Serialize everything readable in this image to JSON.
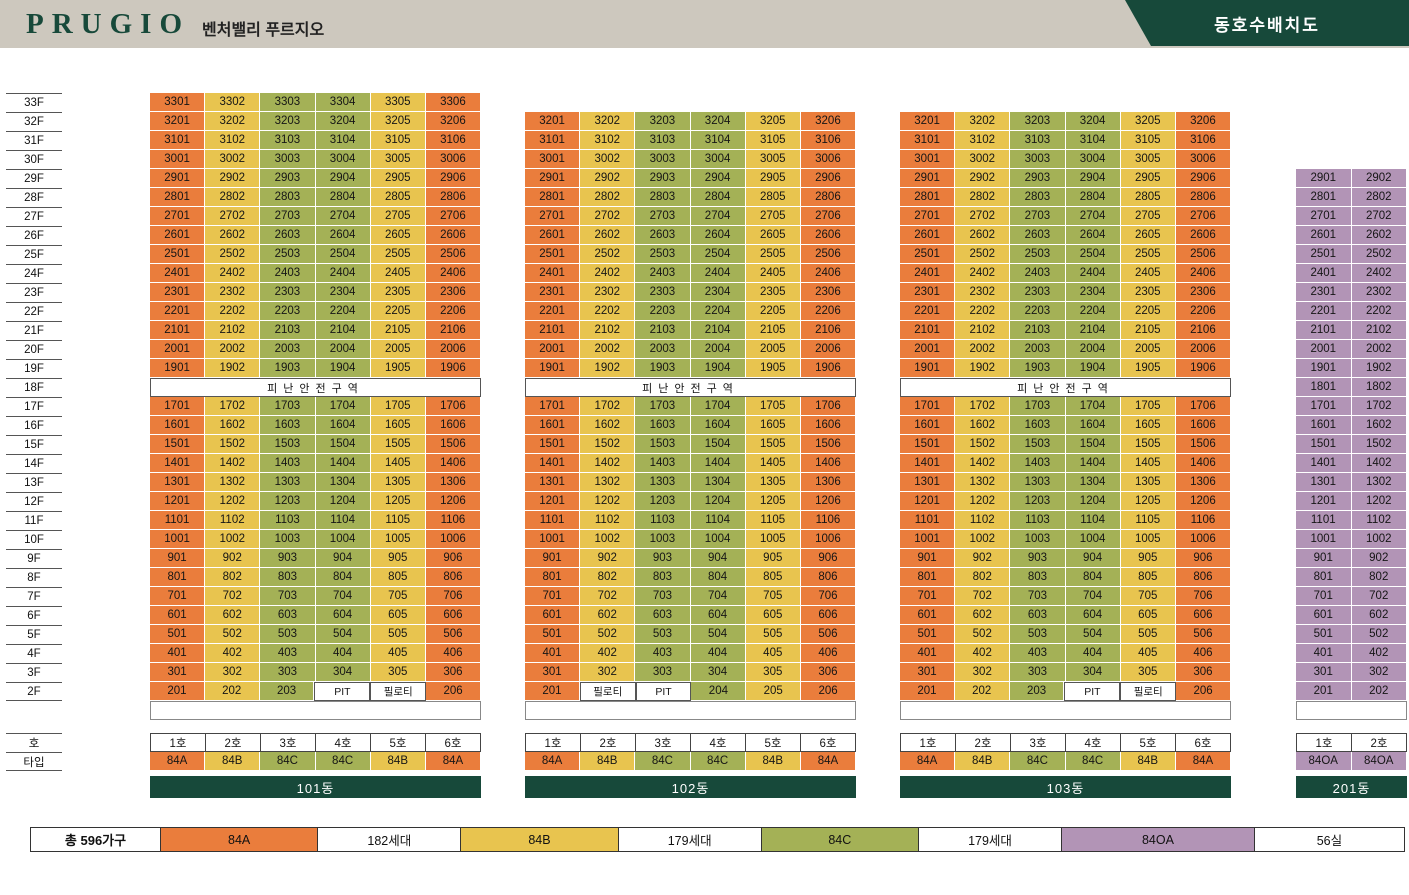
{
  "header": {
    "logo": "PRUGIO",
    "project_name": "벤처밸리 푸르지오",
    "banner_title": "동호수배치도"
  },
  "colors": {
    "84A": "#EA7D3C",
    "84B": "#E8C44F",
    "84C": "#A4B156",
    "84OA": "#B294B6",
    "brand_green": "#17493A",
    "header_beige": "#CDC8BE"
  },
  "floor_labels": [
    "33F",
    "32F",
    "31F",
    "30F",
    "29F",
    "28F",
    "27F",
    "26F",
    "25F",
    "24F",
    "23F",
    "22F",
    "21F",
    "20F",
    "19F",
    "18F",
    "17F",
    "16F",
    "15F",
    "14F",
    "13F",
    "12F",
    "11F",
    "10F",
    "9F",
    "8F",
    "7F",
    "6F",
    "5F",
    "4F",
    "3F",
    "2F"
  ],
  "axis_labels": {
    "unit": "호",
    "type": "타입"
  },
  "buildings": [
    {
      "name": "101동",
      "unit_row": [
        "1호",
        "2호",
        "3호",
        "4호",
        "5호",
        "6호"
      ],
      "type_row": [
        "84A",
        "84B",
        "84C",
        "84C",
        "84B",
        "84A"
      ],
      "rows": [
        [
          "3301",
          "3302",
          "3303",
          "3304",
          "3305",
          "3306"
        ],
        [
          "3201",
          "3202",
          "3203",
          "3204",
          "3205",
          "3206"
        ],
        [
          "3101",
          "3102",
          "3103",
          "3104",
          "3105",
          "3106"
        ],
        [
          "3001",
          "3002",
          "3003",
          "3004",
          "3005",
          "3006"
        ],
        [
          "2901",
          "2902",
          "2903",
          "2904",
          "2905",
          "2906"
        ],
        [
          "2801",
          "2802",
          "2803",
          "2804",
          "2805",
          "2806"
        ],
        [
          "2701",
          "2702",
          "2703",
          "2704",
          "2705",
          "2706"
        ],
        [
          "2601",
          "2602",
          "2603",
          "2604",
          "2605",
          "2606"
        ],
        [
          "2501",
          "2502",
          "2503",
          "2504",
          "2505",
          "2506"
        ],
        [
          "2401",
          "2402",
          "2403",
          "2404",
          "2405",
          "2406"
        ],
        [
          "2301",
          "2302",
          "2303",
          "2304",
          "2305",
          "2306"
        ],
        [
          "2201",
          "2202",
          "2203",
          "2204",
          "2205",
          "2206"
        ],
        [
          "2101",
          "2102",
          "2103",
          "2104",
          "2105",
          "2106"
        ],
        [
          "2001",
          "2002",
          "2003",
          "2004",
          "2005",
          "2006"
        ],
        [
          "1901",
          "1902",
          "1903",
          "1904",
          "1905",
          "1906"
        ],
        {
          "merged": "피난안전구역"
        },
        [
          "1701",
          "1702",
          "1703",
          "1704",
          "1705",
          "1706"
        ],
        [
          "1601",
          "1602",
          "1603",
          "1604",
          "1605",
          "1606"
        ],
        [
          "1501",
          "1502",
          "1503",
          "1504",
          "1505",
          "1506"
        ],
        [
          "1401",
          "1402",
          "1403",
          "1404",
          "1405",
          "1406"
        ],
        [
          "1301",
          "1302",
          "1303",
          "1304",
          "1305",
          "1306"
        ],
        [
          "1201",
          "1202",
          "1203",
          "1204",
          "1205",
          "1206"
        ],
        [
          "1101",
          "1102",
          "1103",
          "1104",
          "1105",
          "1106"
        ],
        [
          "1001",
          "1002",
          "1003",
          "1004",
          "1005",
          "1006"
        ],
        [
          "901",
          "902",
          "903",
          "904",
          "905",
          "906"
        ],
        [
          "801",
          "802",
          "803",
          "804",
          "805",
          "806"
        ],
        [
          "701",
          "702",
          "703",
          "704",
          "705",
          "706"
        ],
        [
          "601",
          "602",
          "603",
          "604",
          "605",
          "606"
        ],
        [
          "501",
          "502",
          "503",
          "504",
          "505",
          "506"
        ],
        [
          "401",
          "402",
          "403",
          "404",
          "405",
          "406"
        ],
        [
          "301",
          "302",
          "303",
          "304",
          "305",
          "306"
        ],
        [
          "201",
          "202",
          "203",
          "PIT",
          "필로티",
          "206"
        ]
      ]
    },
    {
      "name": "102동",
      "unit_row": [
        "1호",
        "2호",
        "3호",
        "4호",
        "5호",
        "6호"
      ],
      "type_row": [
        "84A",
        "84B",
        "84C",
        "84C",
        "84B",
        "84A"
      ],
      "rows": [
        [
          "3201",
          "3202",
          "3203",
          "3204",
          "3205",
          "3206"
        ],
        [
          "3101",
          "3102",
          "3103",
          "3104",
          "3105",
          "3106"
        ],
        [
          "3001",
          "3002",
          "3003",
          "3004",
          "3005",
          "3006"
        ],
        [
          "2901",
          "2902",
          "2903",
          "2904",
          "2905",
          "2906"
        ],
        [
          "2801",
          "2802",
          "2803",
          "2804",
          "2805",
          "2806"
        ],
        [
          "2701",
          "2702",
          "2703",
          "2704",
          "2705",
          "2706"
        ],
        [
          "2601",
          "2602",
          "2603",
          "2604",
          "2605",
          "2606"
        ],
        [
          "2501",
          "2502",
          "2503",
          "2504",
          "2505",
          "2506"
        ],
        [
          "2401",
          "2402",
          "2403",
          "2404",
          "2405",
          "2406"
        ],
        [
          "2301",
          "2302",
          "2303",
          "2304",
          "2305",
          "2306"
        ],
        [
          "2201",
          "2202",
          "2203",
          "2204",
          "2205",
          "2206"
        ],
        [
          "2101",
          "2102",
          "2103",
          "2104",
          "2105",
          "2106"
        ],
        [
          "2001",
          "2002",
          "2003",
          "2004",
          "2005",
          "2006"
        ],
        [
          "1901",
          "1902",
          "1903",
          "1904",
          "1905",
          "1906"
        ],
        {
          "merged": "피난안전구역"
        },
        [
          "1701",
          "1702",
          "1703",
          "1704",
          "1705",
          "1706"
        ],
        [
          "1601",
          "1602",
          "1603",
          "1604",
          "1605",
          "1606"
        ],
        [
          "1501",
          "1502",
          "1503",
          "1504",
          "1505",
          "1506"
        ],
        [
          "1401",
          "1402",
          "1403",
          "1404",
          "1405",
          "1406"
        ],
        [
          "1301",
          "1302",
          "1303",
          "1304",
          "1305",
          "1306"
        ],
        [
          "1201",
          "1202",
          "1203",
          "1204",
          "1205",
          "1206"
        ],
        [
          "1101",
          "1102",
          "1103",
          "1104",
          "1105",
          "1106"
        ],
        [
          "1001",
          "1002",
          "1003",
          "1004",
          "1005",
          "1006"
        ],
        [
          "901",
          "902",
          "903",
          "904",
          "905",
          "906"
        ],
        [
          "801",
          "802",
          "803",
          "804",
          "805",
          "806"
        ],
        [
          "701",
          "702",
          "703",
          "704",
          "705",
          "706"
        ],
        [
          "601",
          "602",
          "603",
          "604",
          "605",
          "606"
        ],
        [
          "501",
          "502",
          "503",
          "504",
          "505",
          "506"
        ],
        [
          "401",
          "402",
          "403",
          "404",
          "405",
          "406"
        ],
        [
          "301",
          "302",
          "303",
          "304",
          "305",
          "306"
        ],
        [
          "201",
          "필로티",
          "PIT",
          "204",
          "205",
          "206"
        ]
      ]
    },
    {
      "name": "103동",
      "unit_row": [
        "1호",
        "2호",
        "3호",
        "4호",
        "5호",
        "6호"
      ],
      "type_row": [
        "84A",
        "84B",
        "84C",
        "84C",
        "84B",
        "84A"
      ],
      "rows": [
        [
          "3201",
          "3202",
          "3203",
          "3204",
          "3205",
          "3206"
        ],
        [
          "3101",
          "3102",
          "3103",
          "3104",
          "3105",
          "3106"
        ],
        [
          "3001",
          "3002",
          "3003",
          "3004",
          "3005",
          "3006"
        ],
        [
          "2901",
          "2902",
          "2903",
          "2904",
          "2905",
          "2906"
        ],
        [
          "2801",
          "2802",
          "2803",
          "2804",
          "2805",
          "2806"
        ],
        [
          "2701",
          "2702",
          "2703",
          "2704",
          "2705",
          "2706"
        ],
        [
          "2601",
          "2602",
          "2603",
          "2604",
          "2605",
          "2606"
        ],
        [
          "2501",
          "2502",
          "2503",
          "2504",
          "2505",
          "2506"
        ],
        [
          "2401",
          "2402",
          "2403",
          "2404",
          "2405",
          "2406"
        ],
        [
          "2301",
          "2302",
          "2303",
          "2304",
          "2305",
          "2306"
        ],
        [
          "2201",
          "2202",
          "2203",
          "2204",
          "2205",
          "2206"
        ],
        [
          "2101",
          "2102",
          "2103",
          "2104",
          "2105",
          "2106"
        ],
        [
          "2001",
          "2002",
          "2003",
          "2004",
          "2005",
          "2006"
        ],
        [
          "1901",
          "1902",
          "1903",
          "1904",
          "1905",
          "1906"
        ],
        {
          "merged": "피난안전구역"
        },
        [
          "1701",
          "1702",
          "1703",
          "1704",
          "1705",
          "1706"
        ],
        [
          "1601",
          "1602",
          "1603",
          "1604",
          "1605",
          "1606"
        ],
        [
          "1501",
          "1502",
          "1503",
          "1504",
          "1505",
          "1506"
        ],
        [
          "1401",
          "1402",
          "1403",
          "1404",
          "1405",
          "1406"
        ],
        [
          "1301",
          "1302",
          "1303",
          "1304",
          "1305",
          "1306"
        ],
        [
          "1201",
          "1202",
          "1203",
          "1204",
          "1205",
          "1206"
        ],
        [
          "1101",
          "1102",
          "1103",
          "1104",
          "1105",
          "1106"
        ],
        [
          "1001",
          "1002",
          "1003",
          "1004",
          "1005",
          "1006"
        ],
        [
          "901",
          "902",
          "903",
          "904",
          "905",
          "906"
        ],
        [
          "801",
          "802",
          "803",
          "804",
          "805",
          "806"
        ],
        [
          "701",
          "702",
          "703",
          "704",
          "705",
          "706"
        ],
        [
          "601",
          "602",
          "603",
          "604",
          "605",
          "606"
        ],
        [
          "501",
          "502",
          "503",
          "504",
          "505",
          "506"
        ],
        [
          "401",
          "402",
          "403",
          "404",
          "405",
          "406"
        ],
        [
          "301",
          "302",
          "303",
          "304",
          "305",
          "306"
        ],
        [
          "201",
          "202",
          "203",
          "PIT",
          "필로티",
          "206"
        ]
      ]
    },
    {
      "name": "201동",
      "unit_row": [
        "1호",
        "2호"
      ],
      "type_row": [
        "84OA",
        "84OA"
      ],
      "rows": [
        [
          "2901",
          "2902"
        ],
        [
          "2801",
          "2802"
        ],
        [
          "2701",
          "2702"
        ],
        [
          "2601",
          "2602"
        ],
        [
          "2501",
          "2502"
        ],
        [
          "2401",
          "2402"
        ],
        [
          "2301",
          "2302"
        ],
        [
          "2201",
          "2202"
        ],
        [
          "2101",
          "2102"
        ],
        [
          "2001",
          "2002"
        ],
        [
          "1901",
          "1902"
        ],
        [
          "1801",
          "1802"
        ],
        [
          "1701",
          "1702"
        ],
        [
          "1601",
          "1602"
        ],
        [
          "1501",
          "1502"
        ],
        [
          "1401",
          "1402"
        ],
        [
          "1301",
          "1302"
        ],
        [
          "1201",
          "1202"
        ],
        [
          "1101",
          "1102"
        ],
        [
          "1001",
          "1002"
        ],
        [
          "901",
          "902"
        ],
        [
          "801",
          "802"
        ],
        [
          "701",
          "702"
        ],
        [
          "601",
          "602"
        ],
        [
          "501",
          "502"
        ],
        [
          "401",
          "402"
        ],
        [
          "301",
          "302"
        ],
        [
          "201",
          "202"
        ]
      ]
    }
  ],
  "legend": {
    "total_label": "총 596가구",
    "items": [
      {
        "type": "84A",
        "count": "182세대"
      },
      {
        "type": "84B",
        "count": "179세대"
      },
      {
        "type": "84C",
        "count": "179세대"
      },
      {
        "type": "84OA",
        "count": "56실"
      }
    ]
  }
}
